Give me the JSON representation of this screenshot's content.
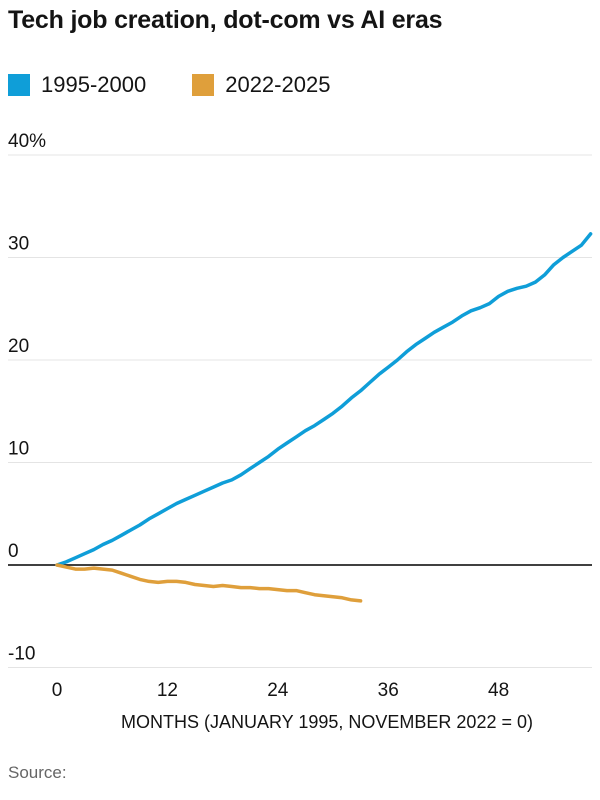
{
  "chart_data": {
    "type": "line",
    "title": "Tech job creation, dot-com vs AI eras",
    "xlabel": "MONTHS (JANUARY 1995, NOVEMBER 2022 = 0)",
    "grid": true,
    "legend_position": "top-left",
    "xlim": [
      0,
      59
    ],
    "ylim": [
      -13,
      42
    ],
    "y_ticks": [
      40,
      30,
      20,
      10,
      0,
      -10
    ],
    "y_tick_labels": [
      "40%",
      "30",
      "20",
      "10",
      "0",
      "-10"
    ],
    "x_ticks": [
      0,
      12,
      24,
      36,
      48
    ],
    "x_tick_labels": [
      "0",
      "12",
      "24",
      "36",
      "48"
    ],
    "series": [
      {
        "name": "1995-2000",
        "color": "#0f9ed8",
        "x_start": 0,
        "x_step": 1,
        "values": [
          0,
          0.3,
          0.7,
          1.1,
          1.5,
          2.0,
          2.4,
          2.9,
          3.4,
          3.9,
          4.5,
          5.0,
          5.5,
          6.0,
          6.4,
          6.8,
          7.2,
          7.6,
          8.0,
          8.3,
          8.8,
          9.4,
          10.0,
          10.6,
          11.3,
          11.9,
          12.5,
          13.1,
          13.6,
          14.2,
          14.8,
          15.5,
          16.3,
          17.0,
          17.8,
          18.6,
          19.3,
          20.0,
          20.8,
          21.5,
          22.1,
          22.7,
          23.2,
          23.7,
          24.3,
          24.8,
          25.1,
          25.5,
          26.2,
          26.7,
          27.0,
          27.2,
          27.6,
          28.3,
          29.3,
          30.0,
          30.6,
          31.2,
          32.3
        ]
      },
      {
        "name": "2022-2025",
        "color": "#df9f3b",
        "x_start": 0,
        "x_step": 1,
        "values": [
          0,
          -0.2,
          -0.4,
          -0.4,
          -0.3,
          -0.4,
          -0.5,
          -0.8,
          -1.1,
          -1.4,
          -1.6,
          -1.7,
          -1.6,
          -1.6,
          -1.7,
          -1.9,
          -2.0,
          -2.1,
          -2.0,
          -2.1,
          -2.2,
          -2.2,
          -2.3,
          -2.3,
          -2.4,
          -2.5,
          -2.5,
          -2.7,
          -2.9,
          -3.0,
          -3.1,
          -3.2,
          -3.4,
          -3.5
        ]
      }
    ]
  },
  "footer": {
    "source_label": "Source:"
  }
}
